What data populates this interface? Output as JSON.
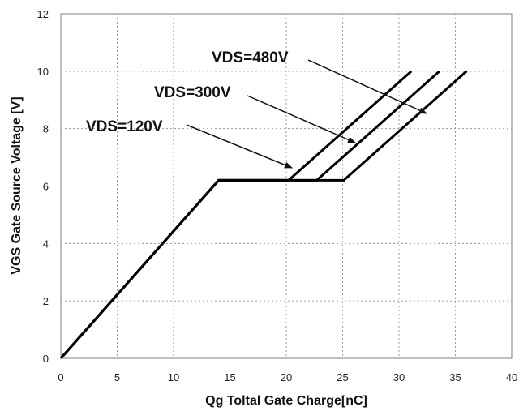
{
  "chart_data": {
    "type": "line",
    "title": "",
    "xlabel": "Qg Toltal Gate Charge[nC]",
    "ylabel": "VGS Gate Source Voltage [V]",
    "xlim": [
      0,
      40
    ],
    "ylim": [
      0,
      12
    ],
    "xticks": [
      "0",
      "5",
      "10",
      "15",
      "20",
      "25",
      "30",
      "35",
      "40"
    ],
    "yticks": [
      "0",
      "2",
      "4",
      "6",
      "8",
      "10",
      "12"
    ],
    "grid": true,
    "grid_style": "dotted",
    "line_color": "#000000",
    "series": [
      {
        "name": "VDS=120V",
        "x": [
          0,
          14,
          20.2,
          31.1
        ],
        "y": [
          0,
          6.2,
          6.2,
          10
        ]
      },
      {
        "name": "VDS=300V",
        "x": [
          0,
          14,
          22.7,
          33.6
        ],
        "y": [
          0,
          6.2,
          6.2,
          10
        ]
      },
      {
        "name": "VDS=480V",
        "x": [
          0,
          14,
          25.1,
          36.0
        ],
        "y": [
          0,
          6.2,
          6.2,
          10
        ]
      }
    ],
    "annotations": [
      {
        "text": "VDS=480V",
        "points_to_series": "VDS=480V"
      },
      {
        "text": "VDS=300V",
        "points_to_series": "VDS=300V"
      },
      {
        "text": "VDS=120V",
        "points_to_series": "VDS=120V"
      }
    ]
  }
}
